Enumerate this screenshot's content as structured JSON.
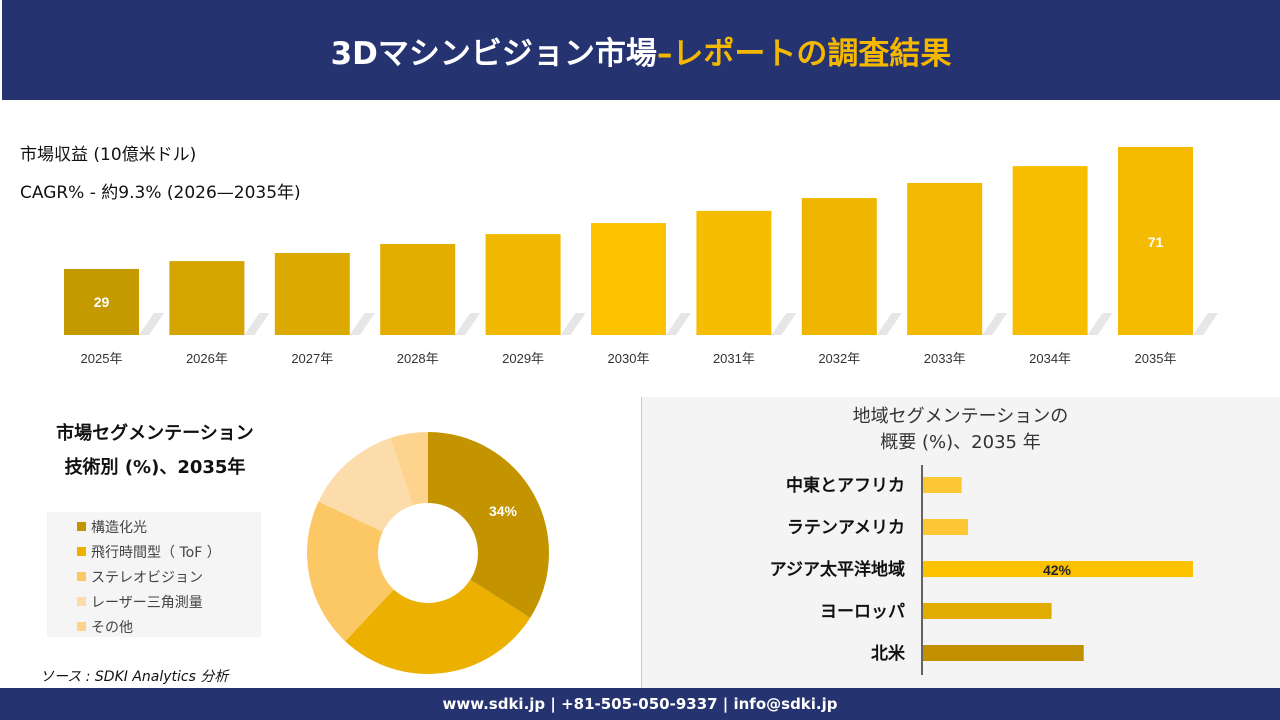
{
  "header": {
    "title_main": "3Dマシンビジョン市場 ",
    "title_accent": "–レポートの調査結果"
  },
  "revenue": {
    "label": "市場収益 (10億米ドル)",
    "cagr": "CAGR% - 約9.3% (2026—2035年)"
  },
  "chart_data": [
    {
      "type": "bar",
      "categories": [
        "2025年",
        "2026年",
        "2027年",
        "2028年",
        "2029年",
        "2030年",
        "2031年",
        "2032年",
        "2033年",
        "2034年",
        "2035年"
      ],
      "values": [
        29,
        31.7,
        34.5,
        37.6,
        41.0,
        44.8,
        49.0,
        53.4,
        58.6,
        64.4,
        71
      ],
      "data_labels": {
        "0": "29",
        "10": "71"
      },
      "colors": [
        "#c49a00",
        "#d4a400",
        "#dcaa00",
        "#e4ae00",
        "#f0b800",
        "#fcc200",
        "#f6bc00",
        "#eeb600",
        "#f2b900",
        "#f7bd00",
        "#f5bb00"
      ],
      "ylabel": "市場収益 (10億米ドル)",
      "grid": false
    },
    {
      "type": "pie",
      "title": "市場セグメンテーション 技術別 (%)、2035年",
      "donut": true,
      "categories": [
        "構造化光",
        "飛行時間型（ ToF ）",
        "ステレオビジョン",
        "レーザー三角測量",
        "その他"
      ],
      "values": [
        34,
        28,
        20,
        13,
        5
      ],
      "data_labels": {
        "0": "34%"
      },
      "colors": [
        "#c49400",
        "#ebb000",
        "#fcc866",
        "#fddcab",
        "#fdd38e"
      ],
      "legend": "left"
    },
    {
      "type": "bar",
      "orientation": "horizontal",
      "title": "地域セグメンテーションの 概要 (%)、2035 年",
      "categories": [
        "中東とアフリカ",
        "ラテンアメリカ",
        "アジア太平洋地域",
        "ヨーロッパ",
        "北米"
      ],
      "values": [
        6,
        7,
        42,
        20,
        25
      ],
      "data_labels": {
        "2": "42%"
      },
      "colors": [
        "#fcc634",
        "#fcc634",
        "#fcc200",
        "#e0ac00",
        "#c09000"
      ]
    }
  ],
  "segment": {
    "title_line1": "市場セグメンテーション",
    "title_line2": "技術別 (%)、2035年"
  },
  "region": {
    "title_line1": "地域セグメンテーションの",
    "title_line2": "概要 (%)、2035 年"
  },
  "source": "ソース : SDKI Analytics 分析",
  "footer": "www.sdki.jp | +81-505-050-9337 | info@sdki.jp"
}
